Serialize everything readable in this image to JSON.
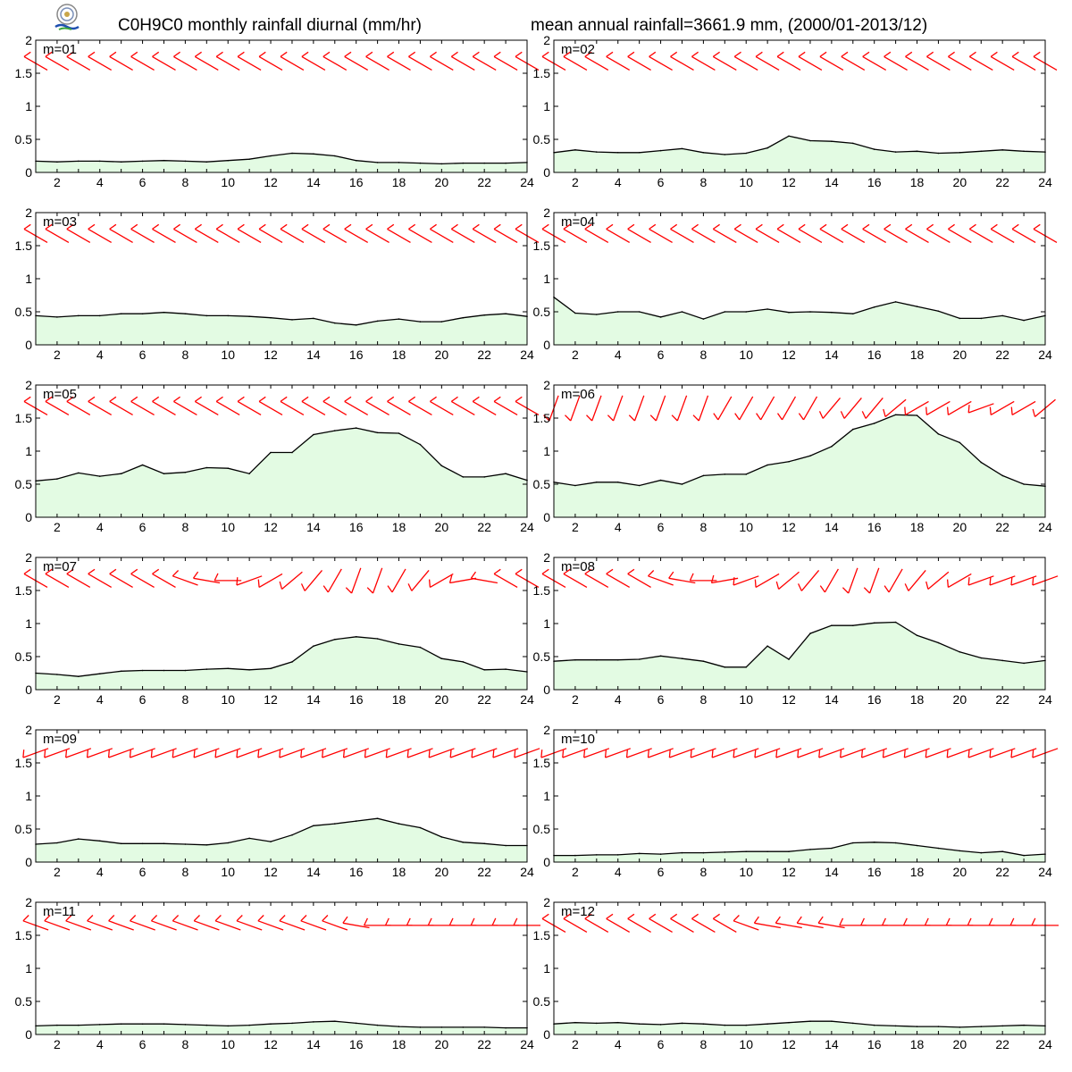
{
  "header": {
    "title_left": "C0H9C0 monthly rainfall diurnal (mm/hr)",
    "title_right": "mean annual rainfall=3661.9 mm, (2000/01-2013/12)",
    "logo_icon": "lab-logo-icon"
  },
  "colors": {
    "area_fill": "#e3fbe3",
    "line": "#000000",
    "wind_barb": "#ff0000",
    "frame": "#000000"
  },
  "chart_data": [
    {
      "type": "area",
      "label": "m=01",
      "x": [
        1,
        2,
        3,
        4,
        5,
        6,
        7,
        8,
        9,
        10,
        11,
        12,
        13,
        14,
        15,
        16,
        17,
        18,
        19,
        20,
        21,
        22,
        23,
        24
      ],
      "values": [
        0.17,
        0.16,
        0.17,
        0.17,
        0.16,
        0.17,
        0.18,
        0.17,
        0.16,
        0.18,
        0.2,
        0.25,
        0.29,
        0.28,
        0.25,
        0.18,
        0.15,
        0.15,
        0.14,
        0.13,
        0.14,
        0.14,
        0.14,
        0.15
      ],
      "wind_barb_dirs": [
        300,
        300,
        300,
        300,
        300,
        300,
        300,
        300,
        300,
        300,
        300,
        300,
        300,
        300,
        300,
        300,
        300,
        300,
        300,
        300,
        300,
        300,
        300,
        300
      ],
      "xticks": [
        2,
        4,
        6,
        8,
        10,
        12,
        14,
        16,
        18,
        20,
        22,
        24
      ],
      "yticks": [
        "0",
        "0.5",
        "1",
        "1.5",
        "2"
      ],
      "xlim": [
        1,
        24
      ],
      "ylim": [
        0,
        2
      ]
    },
    {
      "type": "area",
      "label": "m=02",
      "x": [
        1,
        2,
        3,
        4,
        5,
        6,
        7,
        8,
        9,
        10,
        11,
        12,
        13,
        14,
        15,
        16,
        17,
        18,
        19,
        20,
        21,
        22,
        23,
        24
      ],
      "values": [
        0.3,
        0.34,
        0.31,
        0.3,
        0.3,
        0.33,
        0.36,
        0.3,
        0.27,
        0.29,
        0.37,
        0.55,
        0.48,
        0.47,
        0.44,
        0.35,
        0.31,
        0.32,
        0.29,
        0.3,
        0.32,
        0.34,
        0.32,
        0.31
      ],
      "wind_barb_dirs": [
        300,
        300,
        300,
        300,
        300,
        300,
        300,
        300,
        300,
        300,
        300,
        300,
        300,
        300,
        300,
        300,
        300,
        300,
        300,
        300,
        300,
        300,
        300,
        300
      ],
      "xticks": [
        2,
        4,
        6,
        8,
        10,
        12,
        14,
        16,
        18,
        20,
        22,
        24
      ],
      "yticks": [
        "0",
        "0.5",
        "1",
        "1.5",
        "2"
      ],
      "xlim": [
        1,
        24
      ],
      "ylim": [
        0,
        2
      ]
    },
    {
      "type": "area",
      "label": "m=03",
      "x": [
        1,
        2,
        3,
        4,
        5,
        6,
        7,
        8,
        9,
        10,
        11,
        12,
        13,
        14,
        15,
        16,
        17,
        18,
        19,
        20,
        21,
        22,
        23,
        24
      ],
      "values": [
        0.44,
        0.42,
        0.44,
        0.44,
        0.47,
        0.47,
        0.49,
        0.47,
        0.44,
        0.44,
        0.43,
        0.41,
        0.38,
        0.4,
        0.33,
        0.3,
        0.36,
        0.39,
        0.35,
        0.35,
        0.41,
        0.45,
        0.47,
        0.43
      ],
      "wind_barb_dirs": [
        300,
        300,
        300,
        300,
        300,
        300,
        300,
        300,
        300,
        300,
        300,
        300,
        300,
        300,
        300,
        300,
        300,
        300,
        300,
        300,
        300,
        300,
        300,
        300
      ],
      "xticks": [
        2,
        4,
        6,
        8,
        10,
        12,
        14,
        16,
        18,
        20,
        22,
        24
      ],
      "yticks": [
        "0",
        "0.5",
        "1",
        "1.5",
        "2"
      ],
      "xlim": [
        1,
        24
      ],
      "ylim": [
        0,
        2
      ]
    },
    {
      "type": "area",
      "label": "m=04",
      "x": [
        1,
        2,
        3,
        4,
        5,
        6,
        7,
        8,
        9,
        10,
        11,
        12,
        13,
        14,
        15,
        16,
        17,
        18,
        19,
        20,
        21,
        22,
        23,
        24
      ],
      "values": [
        0.72,
        0.48,
        0.46,
        0.5,
        0.5,
        0.42,
        0.5,
        0.39,
        0.5,
        0.5,
        0.54,
        0.49,
        0.5,
        0.49,
        0.47,
        0.57,
        0.65,
        0.58,
        0.51,
        0.4,
        0.4,
        0.44,
        0.37,
        0.44
      ],
      "wind_barb_dirs": [
        300,
        300,
        300,
        300,
        300,
        300,
        300,
        300,
        300,
        300,
        300,
        300,
        300,
        300,
        300,
        300,
        300,
        300,
        300,
        300,
        300,
        300,
        300,
        300
      ],
      "xticks": [
        2,
        4,
        6,
        8,
        10,
        12,
        14,
        16,
        18,
        20,
        22,
        24
      ],
      "yticks": [
        "0",
        "0.5",
        "1",
        "1.5",
        "2"
      ],
      "xlim": [
        1,
        24
      ],
      "ylim": [
        0,
        2
      ]
    },
    {
      "type": "area",
      "label": "m=05",
      "x": [
        1,
        2,
        3,
        4,
        5,
        6,
        7,
        8,
        9,
        10,
        11,
        12,
        13,
        14,
        15,
        16,
        17,
        18,
        19,
        20,
        21,
        22,
        23,
        24
      ],
      "values": [
        0.55,
        0.58,
        0.67,
        0.62,
        0.66,
        0.79,
        0.66,
        0.68,
        0.75,
        0.74,
        0.66,
        0.98,
        0.98,
        1.25,
        1.31,
        1.35,
        1.28,
        1.27,
        1.1,
        0.78,
        0.61,
        0.61,
        0.66,
        0.56
      ],
      "wind_barb_dirs": [
        300,
        300,
        300,
        300,
        300,
        300,
        300,
        300,
        300,
        300,
        300,
        300,
        300,
        300,
        300,
        300,
        300,
        300,
        300,
        300,
        300,
        300,
        300,
        300
      ],
      "xticks": [
        2,
        4,
        6,
        8,
        10,
        12,
        14,
        16,
        18,
        20,
        22,
        24
      ],
      "yticks": [
        "0",
        "0.5",
        "1",
        "1.5",
        "2"
      ],
      "xlim": [
        1,
        24
      ],
      "ylim": [
        0,
        2
      ]
    },
    {
      "type": "area",
      "label": "m=06",
      "x": [
        1,
        2,
        3,
        4,
        5,
        6,
        7,
        8,
        9,
        10,
        11,
        12,
        13,
        14,
        15,
        16,
        17,
        18,
        19,
        20,
        21,
        22,
        23,
        24
      ],
      "values": [
        0.53,
        0.48,
        0.53,
        0.53,
        0.48,
        0.56,
        0.5,
        0.63,
        0.65,
        0.65,
        0.79,
        0.84,
        0.93,
        1.07,
        1.33,
        1.42,
        1.55,
        1.54,
        1.26,
        1.13,
        0.83,
        0.63,
        0.5,
        0.47
      ],
      "wind_barb_dirs": [
        200,
        200,
        200,
        200,
        200,
        200,
        200,
        200,
        210,
        210,
        210,
        210,
        210,
        220,
        220,
        220,
        230,
        240,
        240,
        240,
        250,
        240,
        240,
        230
      ],
      "xticks": [
        2,
        4,
        6,
        8,
        10,
        12,
        14,
        16,
        18,
        20,
        22,
        24
      ],
      "yticks": [
        "0",
        "0.5",
        "1",
        "1.5",
        "2"
      ],
      "xlim": [
        1,
        24
      ],
      "ylim": [
        0,
        2
      ]
    },
    {
      "type": "area",
      "label": "m=07",
      "x": [
        1,
        2,
        3,
        4,
        5,
        6,
        7,
        8,
        9,
        10,
        11,
        12,
        13,
        14,
        15,
        16,
        17,
        18,
        19,
        20,
        21,
        22,
        23,
        24
      ],
      "values": [
        0.25,
        0.23,
        0.2,
        0.24,
        0.28,
        0.29,
        0.29,
        0.29,
        0.31,
        0.32,
        0.3,
        0.32,
        0.42,
        0.66,
        0.76,
        0.8,
        0.77,
        0.69,
        0.64,
        0.47,
        0.42,
        0.3,
        0.31,
        0.27
      ],
      "wind_barb_dirs": [
        300,
        300,
        300,
        300,
        300,
        300,
        300,
        290,
        280,
        270,
        250,
        240,
        230,
        220,
        210,
        200,
        200,
        210,
        220,
        240,
        260,
        280,
        300,
        300
      ],
      "xticks": [
        2,
        4,
        6,
        8,
        10,
        12,
        14,
        16,
        18,
        20,
        22,
        24
      ],
      "yticks": [
        "0",
        "0.5",
        "1",
        "1.5",
        "2"
      ],
      "xlim": [
        1,
        24
      ],
      "ylim": [
        0,
        2
      ]
    },
    {
      "type": "area",
      "label": "m=08",
      "x": [
        1,
        2,
        3,
        4,
        5,
        6,
        7,
        8,
        9,
        10,
        11,
        12,
        13,
        14,
        15,
        16,
        17,
        18,
        19,
        20,
        21,
        22,
        23,
        24
      ],
      "values": [
        0.43,
        0.45,
        0.45,
        0.45,
        0.46,
        0.51,
        0.47,
        0.43,
        0.34,
        0.34,
        0.66,
        0.46,
        0.85,
        0.97,
        0.97,
        1.01,
        1.02,
        0.82,
        0.71,
        0.57,
        0.48,
        0.44,
        0.4,
        0.44
      ],
      "wind_barb_dirs": [
        300,
        300,
        300,
        300,
        300,
        290,
        280,
        270,
        260,
        250,
        240,
        230,
        220,
        210,
        200,
        200,
        210,
        220,
        230,
        240,
        250,
        250,
        250,
        250
      ],
      "xticks": [
        2,
        4,
        6,
        8,
        10,
        12,
        14,
        16,
        18,
        20,
        22,
        24
      ],
      "yticks": [
        "0",
        "0.5",
        "1",
        "1.5",
        "2"
      ],
      "xlim": [
        1,
        24
      ],
      "ylim": [
        0,
        2
      ]
    },
    {
      "type": "area",
      "label": "m=09",
      "x": [
        1,
        2,
        3,
        4,
        5,
        6,
        7,
        8,
        9,
        10,
        11,
        12,
        13,
        14,
        15,
        16,
        17,
        18,
        19,
        20,
        21,
        22,
        23,
        24
      ],
      "values": [
        0.27,
        0.29,
        0.35,
        0.32,
        0.28,
        0.28,
        0.28,
        0.27,
        0.26,
        0.29,
        0.36,
        0.31,
        0.41,
        0.55,
        0.58,
        0.62,
        0.66,
        0.58,
        0.52,
        0.38,
        0.3,
        0.28,
        0.25,
        0.25
      ],
      "wind_barb_dirs": [
        250,
        250,
        250,
        250,
        250,
        250,
        250,
        250,
        250,
        250,
        250,
        250,
        250,
        250,
        250,
        250,
        250,
        250,
        250,
        250,
        250,
        250,
        250,
        250
      ],
      "xticks": [
        2,
        4,
        6,
        8,
        10,
        12,
        14,
        16,
        18,
        20,
        22,
        24
      ],
      "yticks": [
        "0",
        "0.5",
        "1",
        "1.5",
        "2"
      ],
      "xlim": [
        1,
        24
      ],
      "ylim": [
        0,
        2
      ]
    },
    {
      "type": "area",
      "label": "m=10",
      "x": [
        1,
        2,
        3,
        4,
        5,
        6,
        7,
        8,
        9,
        10,
        11,
        12,
        13,
        14,
        15,
        16,
        17,
        18,
        19,
        20,
        21,
        22,
        23,
        24
      ],
      "values": [
        0.1,
        0.1,
        0.11,
        0.11,
        0.13,
        0.12,
        0.14,
        0.14,
        0.15,
        0.16,
        0.16,
        0.16,
        0.19,
        0.21,
        0.29,
        0.3,
        0.29,
        0.25,
        0.21,
        0.17,
        0.14,
        0.16,
        0.1,
        0.12
      ],
      "wind_barb_dirs": [
        250,
        250,
        250,
        250,
        250,
        250,
        250,
        250,
        250,
        250,
        250,
        250,
        250,
        250,
        250,
        250,
        250,
        250,
        250,
        250,
        250,
        250,
        250,
        250
      ],
      "xticks": [
        2,
        4,
        6,
        8,
        10,
        12,
        14,
        16,
        18,
        20,
        22,
        24
      ],
      "yticks": [
        "0",
        "0.5",
        "1",
        "1.5",
        "2"
      ],
      "xlim": [
        1,
        24
      ],
      "ylim": [
        0,
        2
      ]
    },
    {
      "type": "area",
      "label": "m=11",
      "x": [
        1,
        2,
        3,
        4,
        5,
        6,
        7,
        8,
        9,
        10,
        11,
        12,
        13,
        14,
        15,
        16,
        17,
        18,
        19,
        20,
        21,
        22,
        23,
        24
      ],
      "values": [
        0.13,
        0.14,
        0.14,
        0.15,
        0.16,
        0.16,
        0.16,
        0.15,
        0.14,
        0.13,
        0.14,
        0.16,
        0.17,
        0.19,
        0.2,
        0.17,
        0.14,
        0.12,
        0.11,
        0.11,
        0.11,
        0.11,
        0.1,
        0.1
      ],
      "wind_barb_dirs": [
        290,
        290,
        290,
        290,
        290,
        290,
        290,
        290,
        290,
        290,
        290,
        290,
        290,
        290,
        290,
        280,
        270,
        270,
        270,
        270,
        270,
        270,
        270,
        270
      ],
      "xticks": [
        2,
        4,
        6,
        8,
        10,
        12,
        14,
        16,
        18,
        20,
        22,
        24
      ],
      "yticks": [
        "0",
        "0.5",
        "1",
        "1.5",
        "2"
      ],
      "xlim": [
        1,
        24
      ],
      "ylim": [
        0,
        2
      ]
    },
    {
      "type": "area",
      "label": "m=12",
      "x": [
        1,
        2,
        3,
        4,
        5,
        6,
        7,
        8,
        9,
        10,
        11,
        12,
        13,
        14,
        15,
        16,
        17,
        18,
        19,
        20,
        21,
        22,
        23,
        24
      ],
      "values": [
        0.16,
        0.18,
        0.17,
        0.18,
        0.16,
        0.15,
        0.17,
        0.16,
        0.14,
        0.14,
        0.16,
        0.18,
        0.2,
        0.2,
        0.17,
        0.14,
        0.13,
        0.12,
        0.12,
        0.11,
        0.12,
        0.13,
        0.14,
        0.13
      ],
      "wind_barb_dirs": [
        300,
        300,
        300,
        300,
        300,
        300,
        300,
        300,
        300,
        290,
        280,
        280,
        280,
        280,
        270,
        270,
        270,
        270,
        270,
        270,
        270,
        270,
        270,
        270
      ],
      "xticks": [
        2,
        4,
        6,
        8,
        10,
        12,
        14,
        16,
        18,
        20,
        22,
        24
      ],
      "yticks": [
        "0",
        "0.5",
        "1",
        "1.5",
        "2"
      ],
      "xlim": [
        1,
        24
      ],
      "ylim": [
        0,
        2
      ]
    }
  ]
}
